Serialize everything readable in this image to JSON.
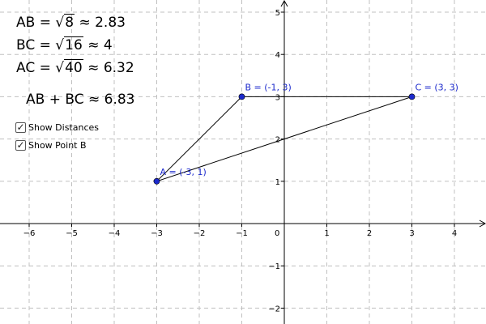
{
  "formulas": {
    "ab": {
      "name": "AB",
      "radicand": "8",
      "approx": "2.83"
    },
    "bc": {
      "name": "BC",
      "radicand": "16",
      "approx": "4"
    },
    "ac": {
      "name": "AC",
      "radicand": "40",
      "approx": "6.32"
    },
    "sum": {
      "expr": "AB + BC",
      "approx": "6.83"
    }
  },
  "checkboxes": [
    {
      "label": "Show Distances",
      "checked": true
    },
    {
      "label": "Show Point B",
      "checked": true
    }
  ],
  "colors": {
    "point": "#1c2acc",
    "grid": "#c0c0c0",
    "axis": "#000000"
  },
  "chart_data": {
    "type": "scatter",
    "xlim": [
      -6.5,
      4.8
    ],
    "ylim": [
      -2.3,
      5.2
    ],
    "x_ticks": [
      -6,
      -5,
      -4,
      -3,
      -2,
      -1,
      1,
      2,
      3,
      4
    ],
    "y_ticks": [
      -2,
      -1,
      1,
      2,
      3,
      4,
      5
    ],
    "origin_label": "0",
    "grid": true,
    "points": [
      {
        "name": "A",
        "label": "A = (-3, 1)",
        "x": -3,
        "y": 1
      },
      {
        "name": "B",
        "label": "B = (-1, 3)",
        "x": -1,
        "y": 3
      },
      {
        "name": "C",
        "label": "C = (3, 3)",
        "x": 3,
        "y": 3
      }
    ],
    "segments": [
      [
        "A",
        "B"
      ],
      [
        "B",
        "C"
      ],
      [
        "A",
        "C"
      ]
    ]
  }
}
